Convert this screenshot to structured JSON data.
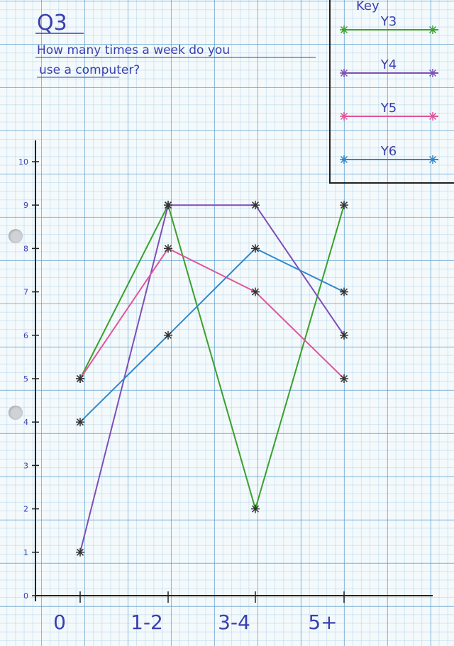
{
  "chart_data": {
    "type": "line",
    "title": "Q3",
    "subtitle": "How many times a week do you use a computer?",
    "categories": [
      "0",
      "1-2",
      "3-4",
      "5+"
    ],
    "ylim": [
      0,
      10
    ],
    "yticks": [
      "0",
      "1",
      "2",
      "3",
      "4",
      "5",
      "6",
      "7",
      "8",
      "9",
      "10"
    ],
    "grid": true,
    "legend_title": "Key",
    "legend_position": "top-right",
    "series": [
      {
        "name": "Y3",
        "values": [
          5,
          9,
          2,
          9
        ],
        "color": "#3aa02c"
      },
      {
        "name": "Y4",
        "values": [
          1,
          9,
          9,
          6
        ],
        "color": "#7f4fb5"
      },
      {
        "name": "Y5",
        "values": [
          5,
          8,
          7,
          5
        ],
        "color": "#e0559c"
      },
      {
        "name": "Y6",
        "values": [
          4,
          6,
          8,
          7
        ],
        "color": "#2f88cc"
      }
    ]
  }
}
